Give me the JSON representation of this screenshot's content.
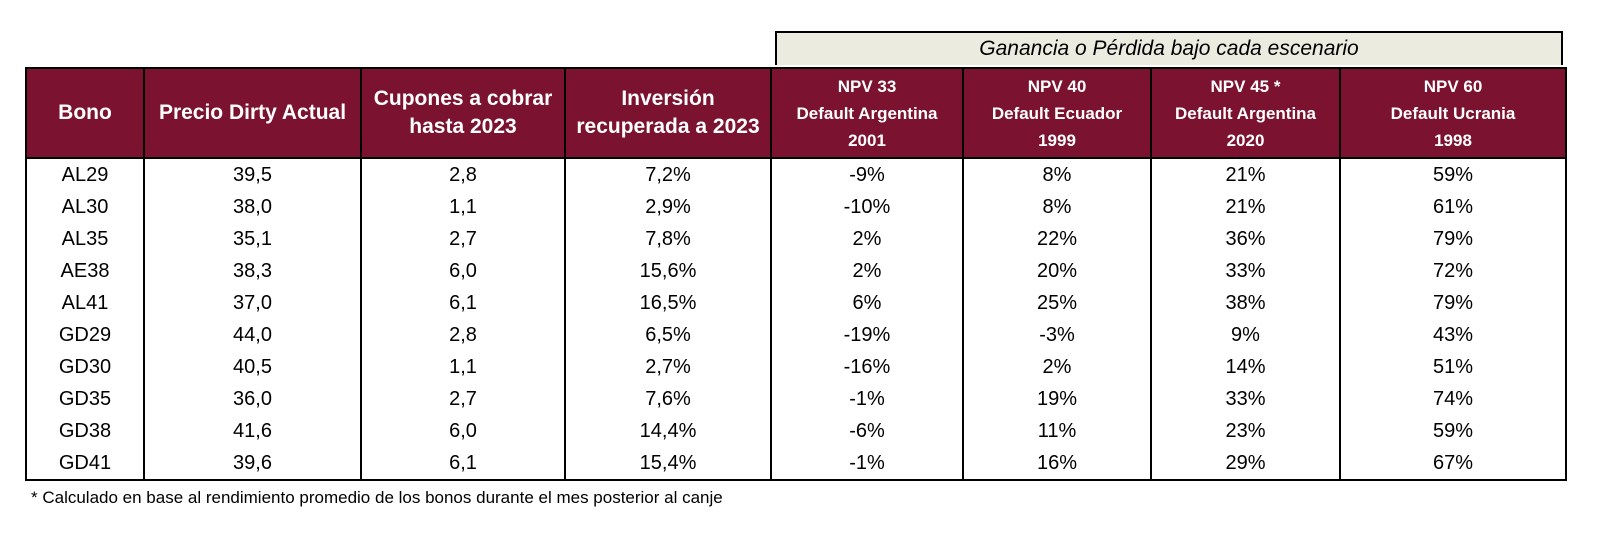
{
  "banner": "Ganancia o Pérdida bajo cada escenario",
  "headers": [
    {
      "lines": [
        "Bono"
      ]
    },
    {
      "lines": [
        "Precio Dirty Actual"
      ]
    },
    {
      "lines": [
        "Cupones a cobrar",
        "hasta 2023"
      ]
    },
    {
      "lines": [
        "Inversión",
        "recuperada a 2023"
      ]
    },
    {
      "lines": [
        "NPV 33",
        "Default Argentina",
        "2001"
      ]
    },
    {
      "lines": [
        "NPV 40",
        "Default Ecuador",
        "1999"
      ]
    },
    {
      "lines": [
        "NPV 45 *",
        "Default Argentina",
        "2020"
      ]
    },
    {
      "lines": [
        "NPV 60",
        "Default Ucrania",
        "1998"
      ]
    }
  ],
  "rows": [
    [
      "AL29",
      "39,5",
      "2,8",
      "7,2%",
      "-9%",
      "8%",
      "21%",
      "59%"
    ],
    [
      "AL30",
      "38,0",
      "1,1",
      "2,9%",
      "-10%",
      "8%",
      "21%",
      "61%"
    ],
    [
      "AL35",
      "35,1",
      "2,7",
      "7,8%",
      "2%",
      "22%",
      "36%",
      "79%"
    ],
    [
      "AE38",
      "38,3",
      "6,0",
      "15,6%",
      "2%",
      "20%",
      "33%",
      "72%"
    ],
    [
      "AL41",
      "37,0",
      "6,1",
      "16,5%",
      "6%",
      "25%",
      "38%",
      "79%"
    ],
    [
      "GD29",
      "44,0",
      "2,8",
      "6,5%",
      "-19%",
      "-3%",
      "9%",
      "43%"
    ],
    [
      "GD30",
      "40,5",
      "1,1",
      "2,7%",
      "-16%",
      "2%",
      "14%",
      "51%"
    ],
    [
      "GD35",
      "36,0",
      "2,7",
      "7,6%",
      "-1%",
      "19%",
      "33%",
      "74%"
    ],
    [
      "GD38",
      "41,6",
      "6,0",
      "14,4%",
      "-6%",
      "11%",
      "23%",
      "59%"
    ],
    [
      "GD41",
      "39,6",
      "6,1",
      "15,4%",
      "-1%",
      "16%",
      "29%",
      "67%"
    ]
  ],
  "footnote": "* Calculado en base al rendimiento promedio de los bonos durante el mes posterior al canje"
}
